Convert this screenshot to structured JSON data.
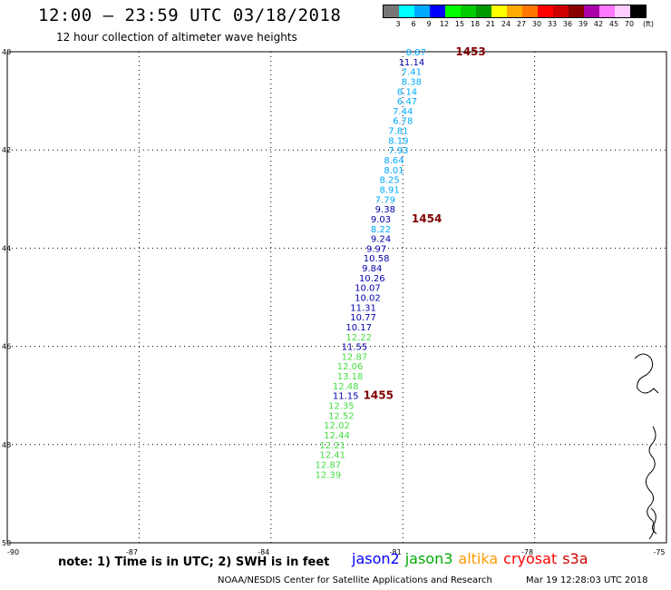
{
  "title": "12:00 – 23:59 UTC 03/18/2018",
  "subtitle": "12 hour collection of altimeter wave heights",
  "legend": {
    "unit": "(ft)",
    "colors": [
      "#777777",
      "#00ffff",
      "#00aaff",
      "#0000ff",
      "#00ff00",
      "#00cc00",
      "#009900",
      "#ffff00",
      "#ffaa00",
      "#ff7700",
      "#ff0000",
      "#cc0000",
      "#880000",
      "#aa00aa",
      "#ff77ff",
      "#ffccff",
      "#000000"
    ],
    "labels": [
      "3",
      "6",
      "9",
      "12",
      "15",
      "18",
      "21",
      "24",
      "27",
      "30",
      "33",
      "36",
      "39",
      "42",
      "45",
      "70"
    ]
  },
  "axes": {
    "lat_labels": [
      "40",
      "42",
      "44",
      "46",
      "48",
      "50"
    ],
    "lon_labels": [
      "-90",
      "-87",
      "-84",
      "-81",
      "-78",
      "-75"
    ]
  },
  "times": [
    {
      "label": "1453",
      "lat": 40.0,
      "lon": -79.8
    },
    {
      "label": "1454",
      "lat": 43.4,
      "lon": -80.8
    },
    {
      "label": "1455",
      "lat": 47.0,
      "lon": -81.9
    }
  ],
  "wave_heights": [
    {
      "v": "8.87",
      "lat": 40.0,
      "lon": -80.7,
      "c": "#00aaff"
    },
    {
      "v": "11.14",
      "lat": 40.2,
      "lon": -80.8,
      "c": "#0000aa"
    },
    {
      "v": "7.41",
      "lat": 40.4,
      "lon": -80.8,
      "c": "#00aaff"
    },
    {
      "v": "8.38",
      "lat": 40.6,
      "lon": -80.8,
      "c": "#00aaff"
    },
    {
      "v": "8.14",
      "lat": 40.8,
      "lon": -80.9,
      "c": "#00aaff"
    },
    {
      "v": "6.47",
      "lat": 41.0,
      "lon": -80.9,
      "c": "#00aaff"
    },
    {
      "v": "7.44",
      "lat": 41.2,
      "lon": -81.0,
      "c": "#00aaff"
    },
    {
      "v": "6.78",
      "lat": 41.4,
      "lon": -81.0,
      "c": "#00aaff"
    },
    {
      "v": "7.81",
      "lat": 41.6,
      "lon": -81.1,
      "c": "#00aaff"
    },
    {
      "v": "8.19",
      "lat": 41.8,
      "lon": -81.1,
      "c": "#00aaff"
    },
    {
      "v": "7.93",
      "lat": 42.0,
      "lon": -81.1,
      "c": "#00aaff"
    },
    {
      "v": "8.64",
      "lat": 42.2,
      "lon": -81.2,
      "c": "#00aaff"
    },
    {
      "v": "8.01",
      "lat": 42.4,
      "lon": -81.2,
      "c": "#00aaff"
    },
    {
      "v": "8.25",
      "lat": 42.6,
      "lon": -81.3,
      "c": "#00aaff"
    },
    {
      "v": "8.91",
      "lat": 42.8,
      "lon": -81.3,
      "c": "#00aaff"
    },
    {
      "v": "7.79",
      "lat": 43.0,
      "lon": -81.4,
      "c": "#00aaff"
    },
    {
      "v": "9.38",
      "lat": 43.2,
      "lon": -81.4,
      "c": "#0000aa"
    },
    {
      "v": "9.03",
      "lat": 43.4,
      "lon": -81.5,
      "c": "#0000aa"
    },
    {
      "v": "8.22",
      "lat": 43.6,
      "lon": -81.5,
      "c": "#00aaff"
    },
    {
      "v": "9.24",
      "lat": 43.8,
      "lon": -81.5,
      "c": "#0000aa"
    },
    {
      "v": "9.97",
      "lat": 44.0,
      "lon": -81.6,
      "c": "#0000aa"
    },
    {
      "v": "10.58",
      "lat": 44.2,
      "lon": -81.6,
      "c": "#0000aa"
    },
    {
      "v": "9.84",
      "lat": 44.4,
      "lon": -81.7,
      "c": "#0000aa"
    },
    {
      "v": "10.26",
      "lat": 44.6,
      "lon": -81.7,
      "c": "#0000aa"
    },
    {
      "v": "10.07",
      "lat": 44.8,
      "lon": -81.8,
      "c": "#0000aa"
    },
    {
      "v": "10.02",
      "lat": 45.0,
      "lon": -81.8,
      "c": "#0000aa"
    },
    {
      "v": "11.31",
      "lat": 45.2,
      "lon": -81.9,
      "c": "#0000aa"
    },
    {
      "v": "10.77",
      "lat": 45.4,
      "lon": -81.9,
      "c": "#0000aa"
    },
    {
      "v": "10.17",
      "lat": 45.6,
      "lon": -82.0,
      "c": "#0000aa"
    },
    {
      "v": "12.22",
      "lat": 45.8,
      "lon": -82.0,
      "c": "#44dd44"
    },
    {
      "v": "11.55",
      "lat": 46.0,
      "lon": -82.1,
      "c": "#0000aa"
    },
    {
      "v": "12.87",
      "lat": 46.2,
      "lon": -82.1,
      "c": "#44dd44"
    },
    {
      "v": "12.06",
      "lat": 46.4,
      "lon": -82.2,
      "c": "#44dd44"
    },
    {
      "v": "13.18",
      "lat": 46.6,
      "lon": -82.2,
      "c": "#44dd44"
    },
    {
      "v": "12.48",
      "lat": 46.8,
      "lon": -82.3,
      "c": "#44dd44"
    },
    {
      "v": "11.15",
      "lat": 47.0,
      "lon": -82.3,
      "c": "#0000aa"
    },
    {
      "v": "12.35",
      "lat": 47.2,
      "lon": -82.4,
      "c": "#44dd44"
    },
    {
      "v": "12.52",
      "lat": 47.4,
      "lon": -82.4,
      "c": "#44dd44"
    },
    {
      "v": "12.02",
      "lat": 47.6,
      "lon": -82.5,
      "c": "#44dd44"
    },
    {
      "v": "12.44",
      "lat": 47.8,
      "lon": -82.5,
      "c": "#44dd44"
    },
    {
      "v": "12.21",
      "lat": 48.0,
      "lon": -82.6,
      "c": "#44dd44"
    },
    {
      "v": "12.41",
      "lat": 48.2,
      "lon": -82.6,
      "c": "#44dd44"
    },
    {
      "v": "12.87",
      "lat": 48.4,
      "lon": -82.7,
      "c": "#44dd44"
    },
    {
      "v": "12.39",
      "lat": 48.6,
      "lon": -82.7,
      "c": "#44dd44"
    }
  ],
  "note": "note: 1) Time is in UTC; 2) SWH is in feet",
  "satellites": [
    {
      "name": "jason2",
      "color": "#0000ff"
    },
    {
      "name": "jason3",
      "color": "#00aa00"
    },
    {
      "name": "altika",
      "color": "#ff9900"
    },
    {
      "name": "cryosat",
      "color": "#ff0000"
    },
    {
      "name": "s3a",
      "color": "#cc0000"
    }
  ],
  "credit": "NOAA/NESDIS Center for Satellite Applications and Research",
  "timestamp": "Mar 19 12:28:03 UTC 2018"
}
